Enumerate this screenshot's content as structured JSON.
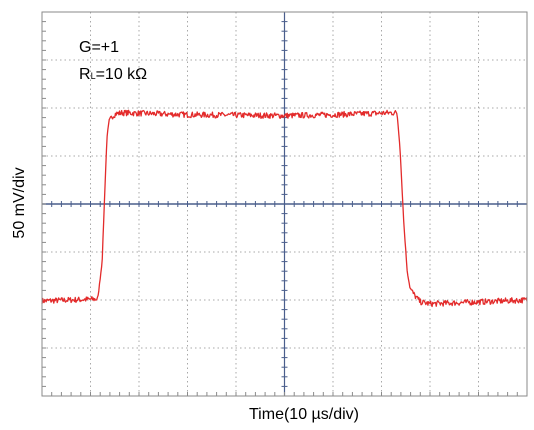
{
  "chart_data": {
    "type": "line",
    "title": "",
    "xlabel": "Time(10 µs/div)",
    "ylabel": "50 mV/div",
    "annotations": {
      "gain": "G=+1",
      "load_prefix": "R",
      "load_subscript": "L",
      "load_value": "=10 kΩ"
    },
    "xlim": [
      -50,
      50
    ],
    "ylim": [
      -200,
      200
    ],
    "x_unit": "µs",
    "y_unit": "mV",
    "divisions": {
      "x": 10,
      "y": 8
    },
    "grid": true,
    "grid_style": "dotted",
    "center_axes_color": "#4a5e8c",
    "series": [
      {
        "color": "#e32b2b",
        "points": [
          [
            -50,
            -101
          ],
          [
            -38.5,
            -99
          ],
          [
            -37.6,
            -60
          ],
          [
            -37.0,
            20
          ],
          [
            -36.6,
            70
          ],
          [
            -36.2,
            85
          ],
          [
            -35.6,
            91
          ],
          [
            -34.8,
            94
          ],
          [
            -33.5,
            95
          ],
          [
            -20,
            93
          ],
          [
            0,
            92
          ],
          [
            10,
            93
          ],
          [
            22,
            95
          ],
          [
            23.2,
            95
          ],
          [
            23.8,
            60
          ],
          [
            24.6,
            -20
          ],
          [
            25.3,
            -70
          ],
          [
            25.9,
            -88
          ],
          [
            26.8,
            -95
          ],
          [
            28,
            -102
          ],
          [
            30,
            -104
          ],
          [
            50,
            -100
          ]
        ]
      }
    ]
  }
}
